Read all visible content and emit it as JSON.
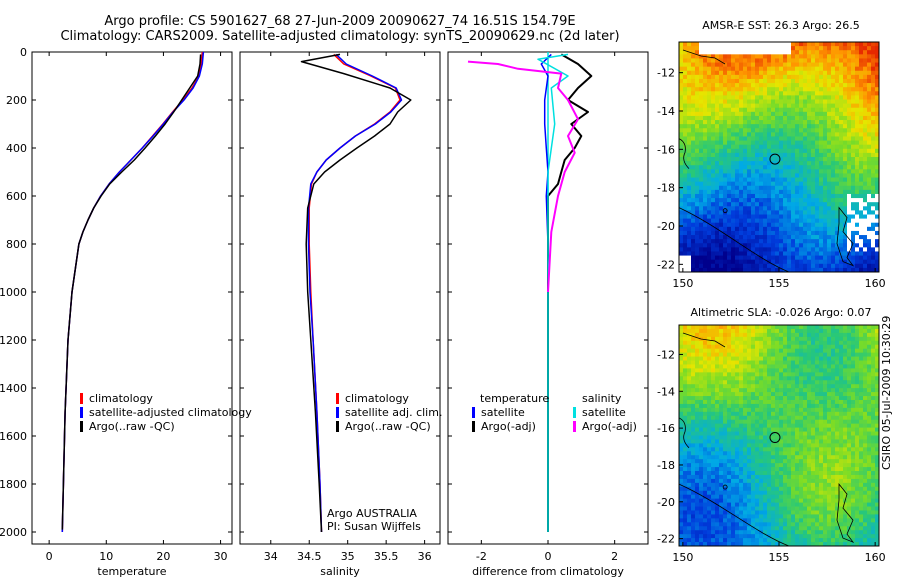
{
  "header": {
    "line1": "Argo profile: CS 5901627_68 27-Jun-2009 20090627_74 16.51S 154.79E",
    "line2": "Climatology: CARS2009. Satellite-adjusted climatology: synTS_20090629.nc (2d later)"
  },
  "credits": {
    "line1": "Argo AUSTRALIA",
    "line2": "PI: Susan Wijffels"
  },
  "stamp": "CSIRO 05-Jul-2009 10:30:29",
  "colors": {
    "climatology": "#ff0000",
    "satellite": "#0000ff",
    "argo": "#000000",
    "sal_satellite": "#00e0e0",
    "sal_argo": "#ff00ff"
  },
  "chart_data": [
    {
      "type": "line",
      "id": "temperature",
      "xlabel": "temperature",
      "ylabel": "",
      "xlim": [
        -3,
        32
      ],
      "ylim": [
        2050,
        0
      ],
      "xticks": [
        0,
        10,
        20,
        30
      ],
      "yticks": [
        0,
        200,
        400,
        600,
        800,
        1000,
        1200,
        1400,
        1600,
        1800,
        2000
      ],
      "legend": {
        "position": "lower-left",
        "entries": [
          "climatology",
          "satellite-adjusted climatology",
          "Argo(..raw -QC)"
        ]
      },
      "series": [
        {
          "name": "climatology",
          "x": [
            26.8,
            26.6,
            26.2,
            25.0,
            23.4,
            21.6,
            19.9,
            18.1,
            16.3,
            14.3,
            12.3,
            10.5,
            9.0,
            7.8,
            6.8,
            5.9,
            5.2,
            4.0,
            3.3,
            2.8,
            2.5,
            2.3
          ],
          "y": [
            0,
            50,
            100,
            150,
            200,
            250,
            300,
            350,
            400,
            450,
            500,
            550,
            600,
            650,
            700,
            750,
            800,
            1000,
            1200,
            1500,
            1800,
            2000
          ]
        },
        {
          "name": "satellite-adjusted climatology",
          "x": [
            27.0,
            26.8,
            26.3,
            25.2,
            23.6,
            21.7,
            20.0,
            18.2,
            16.3,
            14.3,
            12.3,
            10.5,
            9.0,
            7.8,
            6.8,
            5.9,
            5.2,
            4.0,
            3.3,
            2.8,
            2.5,
            2.3
          ],
          "y": [
            0,
            50,
            100,
            150,
            200,
            250,
            300,
            350,
            400,
            450,
            500,
            550,
            600,
            650,
            700,
            750,
            800,
            1000,
            1200,
            1500,
            1800,
            2000
          ]
        },
        {
          "name": "Argo(..raw -QC)",
          "x": [
            26.5,
            26.4,
            26.0,
            24.6,
            23.2,
            21.8,
            20.3,
            18.6,
            16.8,
            14.9,
            12.7,
            10.6,
            9.1,
            7.8,
            6.8,
            5.9,
            5.2,
            4.0,
            3.3,
            2.8,
            2.5,
            2.3
          ],
          "y": [
            10,
            50,
            100,
            150,
            200,
            250,
            300,
            350,
            400,
            450,
            500,
            550,
            600,
            650,
            700,
            750,
            800,
            1000,
            1200,
            1500,
            1800,
            1990
          ]
        }
      ]
    },
    {
      "type": "line",
      "id": "salinity",
      "xlabel": "salinity",
      "ylabel": "",
      "xlim": [
        33.6,
        36.2
      ],
      "ylim": [
        2050,
        0
      ],
      "xticks": [
        34,
        34.5,
        35,
        35.5,
        36
      ],
      "legend": {
        "position": "lower-right",
        "entries": [
          "climatology",
          "satellite adj. clim.",
          "Argo(..raw -QC)"
        ]
      },
      "series": [
        {
          "name": "climatology",
          "x": [
            34.82,
            34.95,
            35.3,
            35.62,
            35.68,
            35.55,
            35.35,
            35.1,
            34.9,
            34.72,
            34.6,
            34.53,
            34.5,
            34.5,
            34.52,
            34.55,
            34.6,
            34.64,
            34.66
          ],
          "y": [
            10,
            50,
            100,
            150,
            200,
            250,
            300,
            350,
            400,
            450,
            500,
            550,
            650,
            800,
            1000,
            1200,
            1500,
            1800,
            2000
          ]
        },
        {
          "name": "satellite adj. clim.",
          "x": [
            34.85,
            34.98,
            35.32,
            35.63,
            35.7,
            35.56,
            35.36,
            35.1,
            34.9,
            34.72,
            34.6,
            34.52,
            34.49,
            34.49,
            34.51,
            34.55,
            34.6,
            34.64,
            34.66
          ],
          "y": [
            10,
            50,
            100,
            150,
            200,
            250,
            300,
            350,
            400,
            450,
            500,
            550,
            650,
            800,
            1000,
            1200,
            1500,
            1800,
            2000
          ]
        },
        {
          "name": "Argo(..raw -QC)",
          "x": [
            34.9,
            34.4,
            34.95,
            35.55,
            35.82,
            35.65,
            35.55,
            35.35,
            35.12,
            34.9,
            34.7,
            34.56,
            34.48,
            34.46,
            34.48,
            34.52,
            34.58,
            34.63,
            34.66
          ],
          "y": [
            10,
            40,
            90,
            150,
            200,
            250,
            300,
            350,
            400,
            450,
            500,
            550,
            650,
            800,
            1000,
            1200,
            1500,
            1800,
            2000
          ]
        }
      ]
    },
    {
      "type": "line",
      "id": "difference",
      "xlabel": "difference from climatology",
      "ylabel": "",
      "xlim": [
        -3.0,
        3.0
      ],
      "ylim": [
        2050,
        0
      ],
      "xticks": [
        -2,
        0,
        2
      ],
      "legend": {
        "position": "lower-center",
        "groups": [
          {
            "title": "temperature",
            "entries": [
              "satellite",
              "Argo(-adj)"
            ]
          },
          {
            "title": "salinity",
            "entries": [
              "satellite",
              "Argo(-adj)"
            ]
          }
        ]
      },
      "series": [
        {
          "name": "temperature satellite",
          "x": [
            0.1,
            -0.2,
            0.0,
            -0.1,
            -0.1,
            -0.05,
            0.0,
            -0.05,
            0.0,
            0.0,
            0.0
          ],
          "y": [
            10,
            50,
            100,
            200,
            300,
            400,
            500,
            600,
            800,
            1200,
            2000
          ]
        },
        {
          "name": "temperature Argo(-adj)",
          "x": [
            0.4,
            0.9,
            1.3,
            0.9,
            0.6,
            1.2,
            0.7,
            1.0,
            0.8,
            0.5,
            0.4,
            0.3,
            0.0,
            0.0,
            0.0,
            0.0
          ],
          "y": [
            10,
            50,
            100,
            150,
            200,
            250,
            300,
            350,
            400,
            450,
            500,
            550,
            600,
            700,
            1100,
            2000
          ]
        },
        {
          "name": "salinity satellite",
          "x": [
            0.6,
            -0.3,
            0.6,
            0.1,
            0.2,
            0.0,
            0.0,
            0.0
          ],
          "y": [
            10,
            30,
            100,
            150,
            300,
            500,
            800,
            2000
          ]
        },
        {
          "name": "salinity Argo(-adj)",
          "x": [
            -2.4,
            -1.5,
            -0.9,
            0.4,
            0.3,
            0.6,
            0.9,
            0.6,
            0.8,
            0.5,
            0.3,
            0.1,
            0.0
          ],
          "y": [
            40,
            50,
            70,
            90,
            150,
            200,
            280,
            350,
            420,
            500,
            600,
            750,
            1000
          ]
        }
      ]
    },
    {
      "type": "heatmap",
      "id": "amsre_sst",
      "title": "AMSR-E SST: 26.3  Argo: 26.5",
      "xlim": [
        149.8,
        160.2
      ],
      "ylim": [
        -22.4,
        -10.4
      ],
      "xticks": [
        150,
        155,
        160
      ],
      "yticks": [
        -12,
        -14,
        -16,
        -18,
        -20,
        -22
      ],
      "argo_position": {
        "lon": 154.79,
        "lat": -16.51
      }
    },
    {
      "type": "heatmap",
      "id": "altimetric_sla",
      "title": "Altimetric SLA: -0.026  Argo: 0.07",
      "xlim": [
        149.8,
        160.2
      ],
      "ylim": [
        -22.4,
        -10.4
      ],
      "xticks": [
        150,
        155,
        160
      ],
      "yticks": [
        -12,
        -14,
        -16,
        -18,
        -20,
        -22
      ],
      "argo_position": {
        "lon": 154.79,
        "lat": -16.51
      }
    }
  ]
}
